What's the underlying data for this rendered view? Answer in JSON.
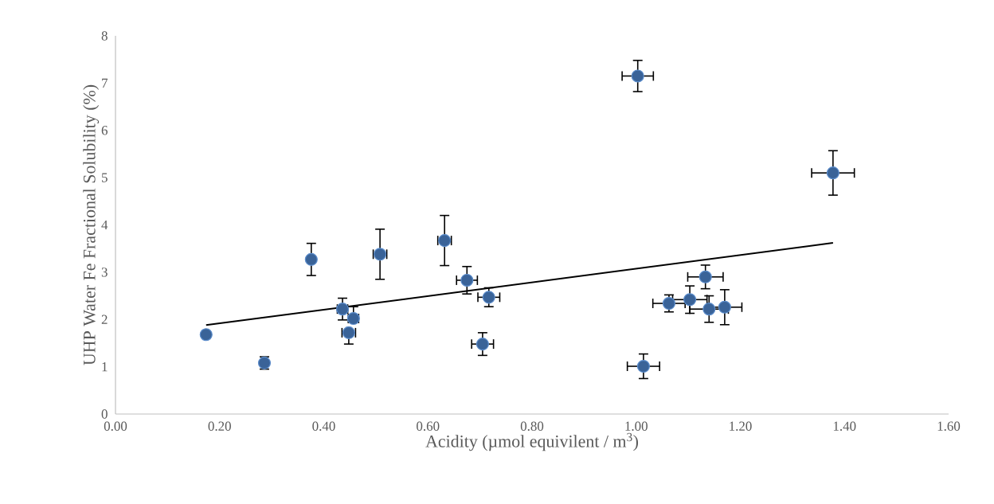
{
  "chart_data": {
    "type": "scatter",
    "xlabel": "Acidity (µmol equivilent / m$^{3}$)",
    "ylabel": "UHP Water Fe Fractional Solubility (%)",
    "xlim": [
      0,
      1.6
    ],
    "ylim": [
      0,
      8
    ],
    "xticks": [
      {
        "value": 0,
        "label": "0.00"
      },
      {
        "value": 0.2,
        "label": "0.20"
      },
      {
        "value": 0.4,
        "label": "0.40"
      },
      {
        "value": 0.6,
        "label": "0.60"
      },
      {
        "value": 0.8,
        "label": "0.80"
      },
      {
        "value": 1.0,
        "label": "1.00"
      },
      {
        "value": 1.2,
        "label": "1.20"
      },
      {
        "value": 1.4,
        "label": "1.40"
      },
      {
        "value": 1.6,
        "label": "1.60"
      }
    ],
    "yticks": [
      0,
      1,
      2,
      3,
      4,
      5,
      6,
      7,
      8
    ],
    "series": [
      {
        "color": "#3a6398",
        "marker": "circle",
        "x": [
          0.174,
          0.286,
          0.376,
          0.436,
          0.448,
          0.457,
          0.508,
          0.632,
          0.675,
          0.705,
          0.717,
          1.003,
          1.014,
          1.063,
          1.103,
          1.133,
          1.14,
          1.17,
          1.378
        ],
        "values": [
          1.68,
          1.08,
          3.27,
          2.22,
          1.72,
          2.02,
          3.38,
          3.67,
          2.83,
          1.48,
          2.47,
          7.15,
          1.01,
          2.34,
          2.42,
          2.9,
          2.22,
          2.26,
          5.1
        ],
        "errors": [
          null,
          0.13,
          0.34,
          0.23,
          [
            1.48,
            1.72
          ],
          [
            2.02,
            2.27
          ],
          0.53,
          0.53,
          0.29,
          0.24,
          0.2,
          0.33,
          0.26,
          0.18,
          0.29,
          0.25,
          0.28,
          0.37,
          0.47
        ],
        "xerrors": [
          null,
          null,
          null,
          0.01,
          0.013,
          0.01,
          0.013,
          0.013,
          0.02,
          0.021,
          0.021,
          0.03,
          0.031,
          0.031,
          0.033,
          0.034,
          0.037,
          0.033,
          0.041
        ]
      },
      {
        "type": "line",
        "color": "#000000",
        "x": [
          0.174,
          1.378
        ],
        "values": [
          1.88,
          3.62
        ],
        "marker": "none"
      }
    ]
  }
}
